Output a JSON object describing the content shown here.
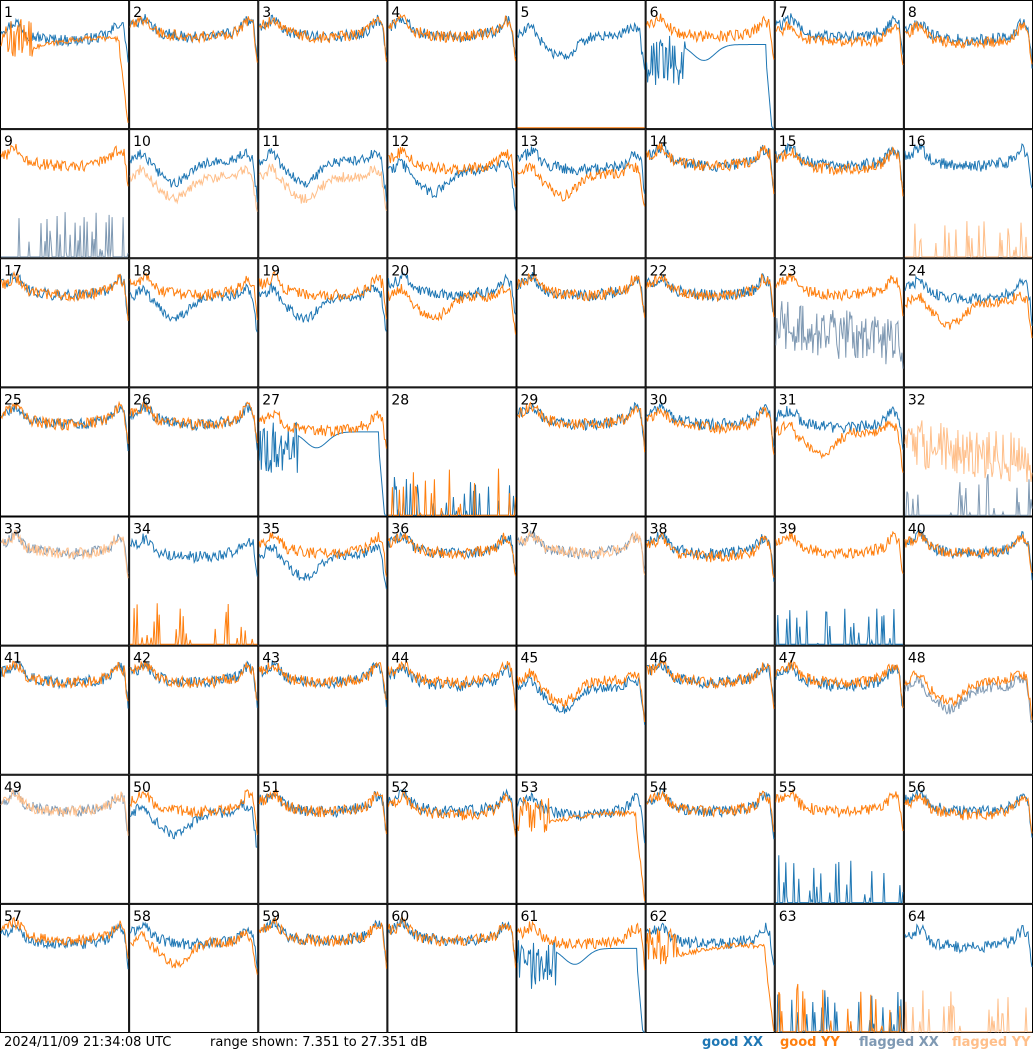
{
  "footer": {
    "timestamp": "2024/11/09 21:34:08 UTC",
    "range_text": "range shown: 7.351 to 27.351 dB"
  },
  "legend": [
    {
      "label": "good XX",
      "word": "good",
      "pol": "XX",
      "color": "#1f77b4"
    },
    {
      "label": "good YY",
      "word": "good",
      "pol": "YY",
      "color": "#ff7f0e"
    },
    {
      "label": "flagged XX",
      "word": "flagged",
      "pol": "XX",
      "color": "#7f99b3"
    },
    {
      "label": "flagged YY",
      "word": "flagged",
      "pol": "YY",
      "color": "#ffbf8a"
    }
  ],
  "chart_data": {
    "type": "line",
    "layout": "8x8 grid of small multiples, one panel per antenna",
    "ylim_db": [
      7.351,
      27.351
    ],
    "x_axis": "frequency channel (unlabeled)",
    "grid": false,
    "legend_position": "bottom-right",
    "series_colors": {
      "good_xx": "#1f77b4",
      "good_yy": "#ff7f0e",
      "flagged_xx": "#7f99b3",
      "flagged_yy": "#ffbf8a"
    },
    "panels": [
      {
        "id": "1",
        "xx": {
          "shape": "standard",
          "level": 22.5,
          "flag": false
        },
        "yy": {
          "shape": "decay",
          "level": 20,
          "flag": false
        }
      },
      {
        "id": "2",
        "xx": {
          "shape": "standard",
          "level": 23,
          "flag": false
        },
        "yy": {
          "shape": "standard",
          "level": 23,
          "flag": false
        }
      },
      {
        "id": "3",
        "xx": {
          "shape": "standard",
          "level": 23,
          "flag": false
        },
        "yy": {
          "shape": "standard",
          "level": 23,
          "flag": false
        }
      },
      {
        "id": "4",
        "xx": {
          "shape": "standard",
          "level": 23,
          "flag": false
        },
        "yy": {
          "shape": "standard",
          "level": 23,
          "flag": false
        }
      },
      {
        "id": "5",
        "xx": {
          "shape": "dip",
          "level": 22,
          "flag": false
        },
        "yy": {
          "shape": "flat",
          "level": 7.4,
          "flag": false
        }
      },
      {
        "id": "6",
        "xx": {
          "shape": "dead",
          "level": 18,
          "flag": false
        },
        "yy": {
          "shape": "standard",
          "level": 23,
          "flag": false
        }
      },
      {
        "id": "7",
        "xx": {
          "shape": "standard",
          "level": 23,
          "flag": false
        },
        "yy": {
          "shape": "standard",
          "level": 22,
          "flag": false
        }
      },
      {
        "id": "8",
        "xx": {
          "shape": "standard",
          "level": 22.5,
          "flag": false
        },
        "yy": {
          "shape": "standard",
          "level": 22,
          "flag": false
        }
      },
      {
        "id": "9",
        "xx": {
          "shape": "spikes",
          "level": 9,
          "flag": true
        },
        "yy": {
          "shape": "standard",
          "level": 23,
          "flag": false
        }
      },
      {
        "id": "10",
        "xx": {
          "shape": "dip",
          "level": 22.5,
          "flag": false
        },
        "yy": {
          "shape": "dip",
          "level": 20,
          "flag": true
        }
      },
      {
        "id": "11",
        "xx": {
          "shape": "dip",
          "level": 22.5,
          "flag": false
        },
        "yy": {
          "shape": "dip",
          "level": 20,
          "flag": true
        }
      },
      {
        "id": "12",
        "xx": {
          "shape": "dip",
          "level": 21,
          "flag": false
        },
        "yy": {
          "shape": "standard",
          "level": 22.5,
          "flag": false
        }
      },
      {
        "id": "13",
        "xx": {
          "shape": "standard",
          "level": 22.5,
          "flag": false
        },
        "yy": {
          "shape": "dip",
          "level": 20.5,
          "flag": false
        }
      },
      {
        "id": "14",
        "xx": {
          "shape": "standard",
          "level": 23,
          "flag": false
        },
        "yy": {
          "shape": "standard",
          "level": 23,
          "flag": false
        }
      },
      {
        "id": "15",
        "xx": {
          "shape": "standard",
          "level": 23,
          "flag": false
        },
        "yy": {
          "shape": "standard",
          "level": 22.5,
          "flag": false
        }
      },
      {
        "id": "16",
        "xx": {
          "shape": "standard",
          "level": 23,
          "flag": false
        },
        "yy": {
          "shape": "spikes",
          "level": 8,
          "flag": true
        }
      },
      {
        "id": "17",
        "xx": {
          "shape": "standard",
          "level": 23,
          "flag": false
        },
        "yy": {
          "shape": "standard",
          "level": 23,
          "flag": false
        }
      },
      {
        "id": "18",
        "xx": {
          "shape": "dip",
          "level": 21.5,
          "flag": false
        },
        "yy": {
          "shape": "standard",
          "level": 23,
          "flag": false
        }
      },
      {
        "id": "19",
        "xx": {
          "shape": "dip",
          "level": 21.5,
          "flag": false
        },
        "yy": {
          "shape": "standard",
          "level": 23,
          "flag": false
        }
      },
      {
        "id": "20",
        "xx": {
          "shape": "standard",
          "level": 23,
          "flag": false
        },
        "yy": {
          "shape": "dip",
          "level": 21.5,
          "flag": false
        }
      },
      {
        "id": "21",
        "xx": {
          "shape": "standard",
          "level": 23,
          "flag": false
        },
        "yy": {
          "shape": "standard",
          "level": 23,
          "flag": false
        }
      },
      {
        "id": "22",
        "xx": {
          "shape": "standard",
          "level": 23,
          "flag": false
        },
        "yy": {
          "shape": "standard",
          "level": 23,
          "flag": false
        }
      },
      {
        "id": "23",
        "xx": {
          "shape": "noisy",
          "level": 17,
          "flag": true
        },
        "yy": {
          "shape": "standard",
          "level": 23,
          "flag": false
        }
      },
      {
        "id": "24",
        "xx": {
          "shape": "standard",
          "level": 22.5,
          "flag": false
        },
        "yy": {
          "shape": "dip",
          "level": 20.5,
          "flag": false
        }
      },
      {
        "id": "25",
        "xx": {
          "shape": "standard",
          "level": 23,
          "flag": false
        },
        "yy": {
          "shape": "standard",
          "level": 23,
          "flag": false
        }
      },
      {
        "id": "26",
        "xx": {
          "shape": "standard",
          "level": 23,
          "flag": false
        },
        "yy": {
          "shape": "standard",
          "level": 23,
          "flag": false
        }
      },
      {
        "id": "27",
        "xx": {
          "shape": "dead",
          "level": 18,
          "flag": false
        },
        "yy": {
          "shape": "standard",
          "level": 22,
          "flag": false
        }
      },
      {
        "id": "28",
        "xx": {
          "shape": "spikes",
          "level": 8,
          "flag": false
        },
        "yy": {
          "shape": "spikes",
          "level": 9,
          "flag": false
        }
      },
      {
        "id": "29",
        "xx": {
          "shape": "standard",
          "level": 23,
          "flag": false
        },
        "yy": {
          "shape": "standard",
          "level": 23,
          "flag": false
        }
      },
      {
        "id": "30",
        "xx": {
          "shape": "standard",
          "level": 23,
          "flag": false
        },
        "yy": {
          "shape": "standard",
          "level": 22.5,
          "flag": false
        }
      },
      {
        "id": "31",
        "xx": {
          "shape": "standard",
          "level": 22.5,
          "flag": false
        },
        "yy": {
          "shape": "dip",
          "level": 20.5,
          "flag": false
        }
      },
      {
        "id": "32",
        "xx": {
          "shape": "spikes",
          "level": 8,
          "flag": true
        },
        "yy": {
          "shape": "noisy",
          "level": 19,
          "flag": true
        }
      },
      {
        "id": "33",
        "xx": {
          "shape": "standard",
          "level": 23,
          "flag": true
        },
        "yy": {
          "shape": "standard",
          "level": 23,
          "flag": true
        }
      },
      {
        "id": "34",
        "xx": {
          "shape": "standard",
          "level": 22.5,
          "flag": false
        },
        "yy": {
          "shape": "spikes",
          "level": 9,
          "flag": false
        }
      },
      {
        "id": "35",
        "xx": {
          "shape": "dip",
          "level": 21.5,
          "flag": false
        },
        "yy": {
          "shape": "standard",
          "level": 23,
          "flag": false
        }
      },
      {
        "id": "36",
        "xx": {
          "shape": "standard",
          "level": 23,
          "flag": false
        },
        "yy": {
          "shape": "standard",
          "level": 23,
          "flag": false
        }
      },
      {
        "id": "37",
        "xx": {
          "shape": "standard",
          "level": 23,
          "flag": true
        },
        "yy": {
          "shape": "standard",
          "level": 23,
          "flag": true
        }
      },
      {
        "id": "38",
        "xx": {
          "shape": "standard",
          "level": 23,
          "flag": false
        },
        "yy": {
          "shape": "standard",
          "level": 22.5,
          "flag": false
        }
      },
      {
        "id": "39",
        "xx": {
          "shape": "spikes",
          "level": 8,
          "flag": false
        },
        "yy": {
          "shape": "standard",
          "level": 23,
          "flag": false
        }
      },
      {
        "id": "40",
        "xx": {
          "shape": "standard",
          "level": 23,
          "flag": false
        },
        "yy": {
          "shape": "standard",
          "level": 23,
          "flag": false
        }
      },
      {
        "id": "41",
        "xx": {
          "shape": "standard",
          "level": 23,
          "flag": false
        },
        "yy": {
          "shape": "standard",
          "level": 23,
          "flag": false
        }
      },
      {
        "id": "42",
        "xx": {
          "shape": "standard",
          "level": 23,
          "flag": false
        },
        "yy": {
          "shape": "standard",
          "level": 23,
          "flag": false
        }
      },
      {
        "id": "43",
        "xx": {
          "shape": "standard",
          "level": 23,
          "flag": false
        },
        "yy": {
          "shape": "standard",
          "level": 23,
          "flag": false
        }
      },
      {
        "id": "44",
        "xx": {
          "shape": "standard",
          "level": 22.5,
          "flag": false
        },
        "yy": {
          "shape": "standard",
          "level": 23,
          "flag": false
        }
      },
      {
        "id": "45",
        "xx": {
          "shape": "dip",
          "level": 21,
          "flag": false
        },
        "yy": {
          "shape": "dip",
          "level": 22,
          "flag": false
        }
      },
      {
        "id": "46",
        "xx": {
          "shape": "standard",
          "level": 23,
          "flag": false
        },
        "yy": {
          "shape": "standard",
          "level": 23,
          "flag": false
        }
      },
      {
        "id": "47",
        "xx": {
          "shape": "standard",
          "level": 22.5,
          "flag": false
        },
        "yy": {
          "shape": "standard",
          "level": 23,
          "flag": false
        }
      },
      {
        "id": "48",
        "xx": {
          "shape": "dip",
          "level": 21,
          "flag": true
        },
        "yy": {
          "shape": "dip",
          "level": 22,
          "flag": false
        }
      },
      {
        "id": "49",
        "xx": {
          "shape": "standard",
          "level": 23,
          "flag": true
        },
        "yy": {
          "shape": "standard",
          "level": 23,
          "flag": true
        }
      },
      {
        "id": "50",
        "xx": {
          "shape": "dip",
          "level": 21.5,
          "flag": false
        },
        "yy": {
          "shape": "standard",
          "level": 23,
          "flag": false
        }
      },
      {
        "id": "51",
        "xx": {
          "shape": "standard",
          "level": 23,
          "flag": false
        },
        "yy": {
          "shape": "standard",
          "level": 23,
          "flag": false
        }
      },
      {
        "id": "52",
        "xx": {
          "shape": "standard",
          "level": 23,
          "flag": false
        },
        "yy": {
          "shape": "standard",
          "level": 22.5,
          "flag": false
        }
      },
      {
        "id": "53",
        "xx": {
          "shape": "standard",
          "level": 22.5,
          "flag": false
        },
        "yy": {
          "shape": "decay",
          "level": 20,
          "flag": false
        }
      },
      {
        "id": "54",
        "xx": {
          "shape": "standard",
          "level": 23,
          "flag": false
        },
        "yy": {
          "shape": "standard",
          "level": 23,
          "flag": false
        }
      },
      {
        "id": "55",
        "xx": {
          "shape": "spikes",
          "level": 9,
          "flag": false
        },
        "yy": {
          "shape": "standard",
          "level": 23,
          "flag": false
        }
      },
      {
        "id": "56",
        "xx": {
          "shape": "standard",
          "level": 23,
          "flag": false
        },
        "yy": {
          "shape": "standard",
          "level": 22.5,
          "flag": false
        }
      },
      {
        "id": "57",
        "xx": {
          "shape": "standard",
          "level": 22.5,
          "flag": false
        },
        "yy": {
          "shape": "standard",
          "level": 23,
          "flag": false
        }
      },
      {
        "id": "58",
        "xx": {
          "shape": "standard",
          "level": 22.5,
          "flag": false
        },
        "yy": {
          "shape": "dip",
          "level": 21.5,
          "flag": false
        }
      },
      {
        "id": "59",
        "xx": {
          "shape": "standard",
          "level": 23,
          "flag": false
        },
        "yy": {
          "shape": "standard",
          "level": 23,
          "flag": false
        }
      },
      {
        "id": "60",
        "xx": {
          "shape": "standard",
          "level": 23,
          "flag": false
        },
        "yy": {
          "shape": "standard",
          "level": 23,
          "flag": false
        }
      },
      {
        "id": "61",
        "xx": {
          "shape": "dead",
          "level": 18,
          "flag": false
        },
        "yy": {
          "shape": "standard",
          "level": 22.5,
          "flag": false
        }
      },
      {
        "id": "62",
        "xx": {
          "shape": "standard",
          "level": 22.5,
          "flag": false
        },
        "yy": {
          "shape": "decay",
          "level": 19.5,
          "flag": false
        }
      },
      {
        "id": "63",
        "xx": {
          "shape": "spikes",
          "level": 8,
          "flag": false
        },
        "yy": {
          "shape": "spikes",
          "level": 9,
          "flag": false
        }
      },
      {
        "id": "64",
        "xx": {
          "shape": "standard",
          "level": 22,
          "flag": false
        },
        "yy": {
          "shape": "spikes",
          "level": 8,
          "flag": true
        }
      }
    ]
  }
}
